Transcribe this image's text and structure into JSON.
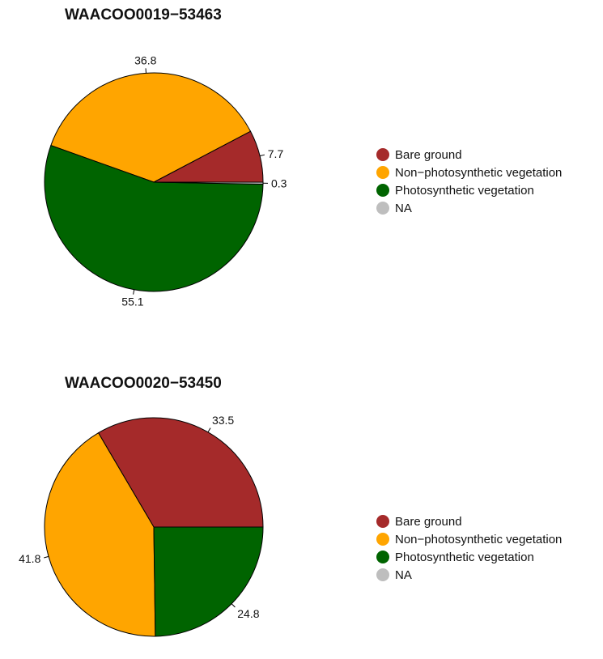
{
  "chart_data": [
    {
      "type": "pie",
      "title": "WAACOO0019−53463",
      "categories": [
        "Bare ground",
        "Non−photosynthetic vegetation",
        "Photosynthetic vegetation",
        "NA"
      ],
      "values": [
        7.7,
        36.8,
        55.1,
        0.3
      ],
      "data_labels": [
        "7.7",
        "36.8",
        "55.1",
        "0.3"
      ],
      "slice_order": [
        "Bare ground",
        "Non−photosynthetic vegetation",
        "Photosynthetic vegetation",
        "NA"
      ],
      "direction": "counterclockwise",
      "start": "right",
      "legend": {
        "position": "right",
        "entries": [
          "Bare ground",
          "Non−photosynthetic vegetation",
          "Photosynthetic vegetation",
          "NA"
        ]
      }
    },
    {
      "type": "pie",
      "title": "WAACOO0020−53450",
      "categories": [
        "Bare ground",
        "Non−photosynthetic vegetation",
        "Photosynthetic vegetation",
        "NA"
      ],
      "values": [
        33.5,
        41.8,
        24.8,
        0
      ],
      "data_labels": [
        "33.5",
        "41.8",
        "24.8",
        ""
      ],
      "slice_order": [
        "Bare ground",
        "Non−photosynthetic vegetation",
        "Photosynthetic vegetation",
        "NA"
      ],
      "direction": "counterclockwise",
      "start": "right",
      "legend": {
        "position": "right",
        "entries": [
          "Bare ground",
          "Non−photosynthetic vegetation",
          "Photosynthetic vegetation",
          "NA"
        ]
      }
    }
  ],
  "colors": {
    "Bare ground": "#a52a2a",
    "Non−photosynthetic vegetation": "#ffa500",
    "Photosynthetic vegetation": "#006400",
    "NA": "#bebebe"
  }
}
